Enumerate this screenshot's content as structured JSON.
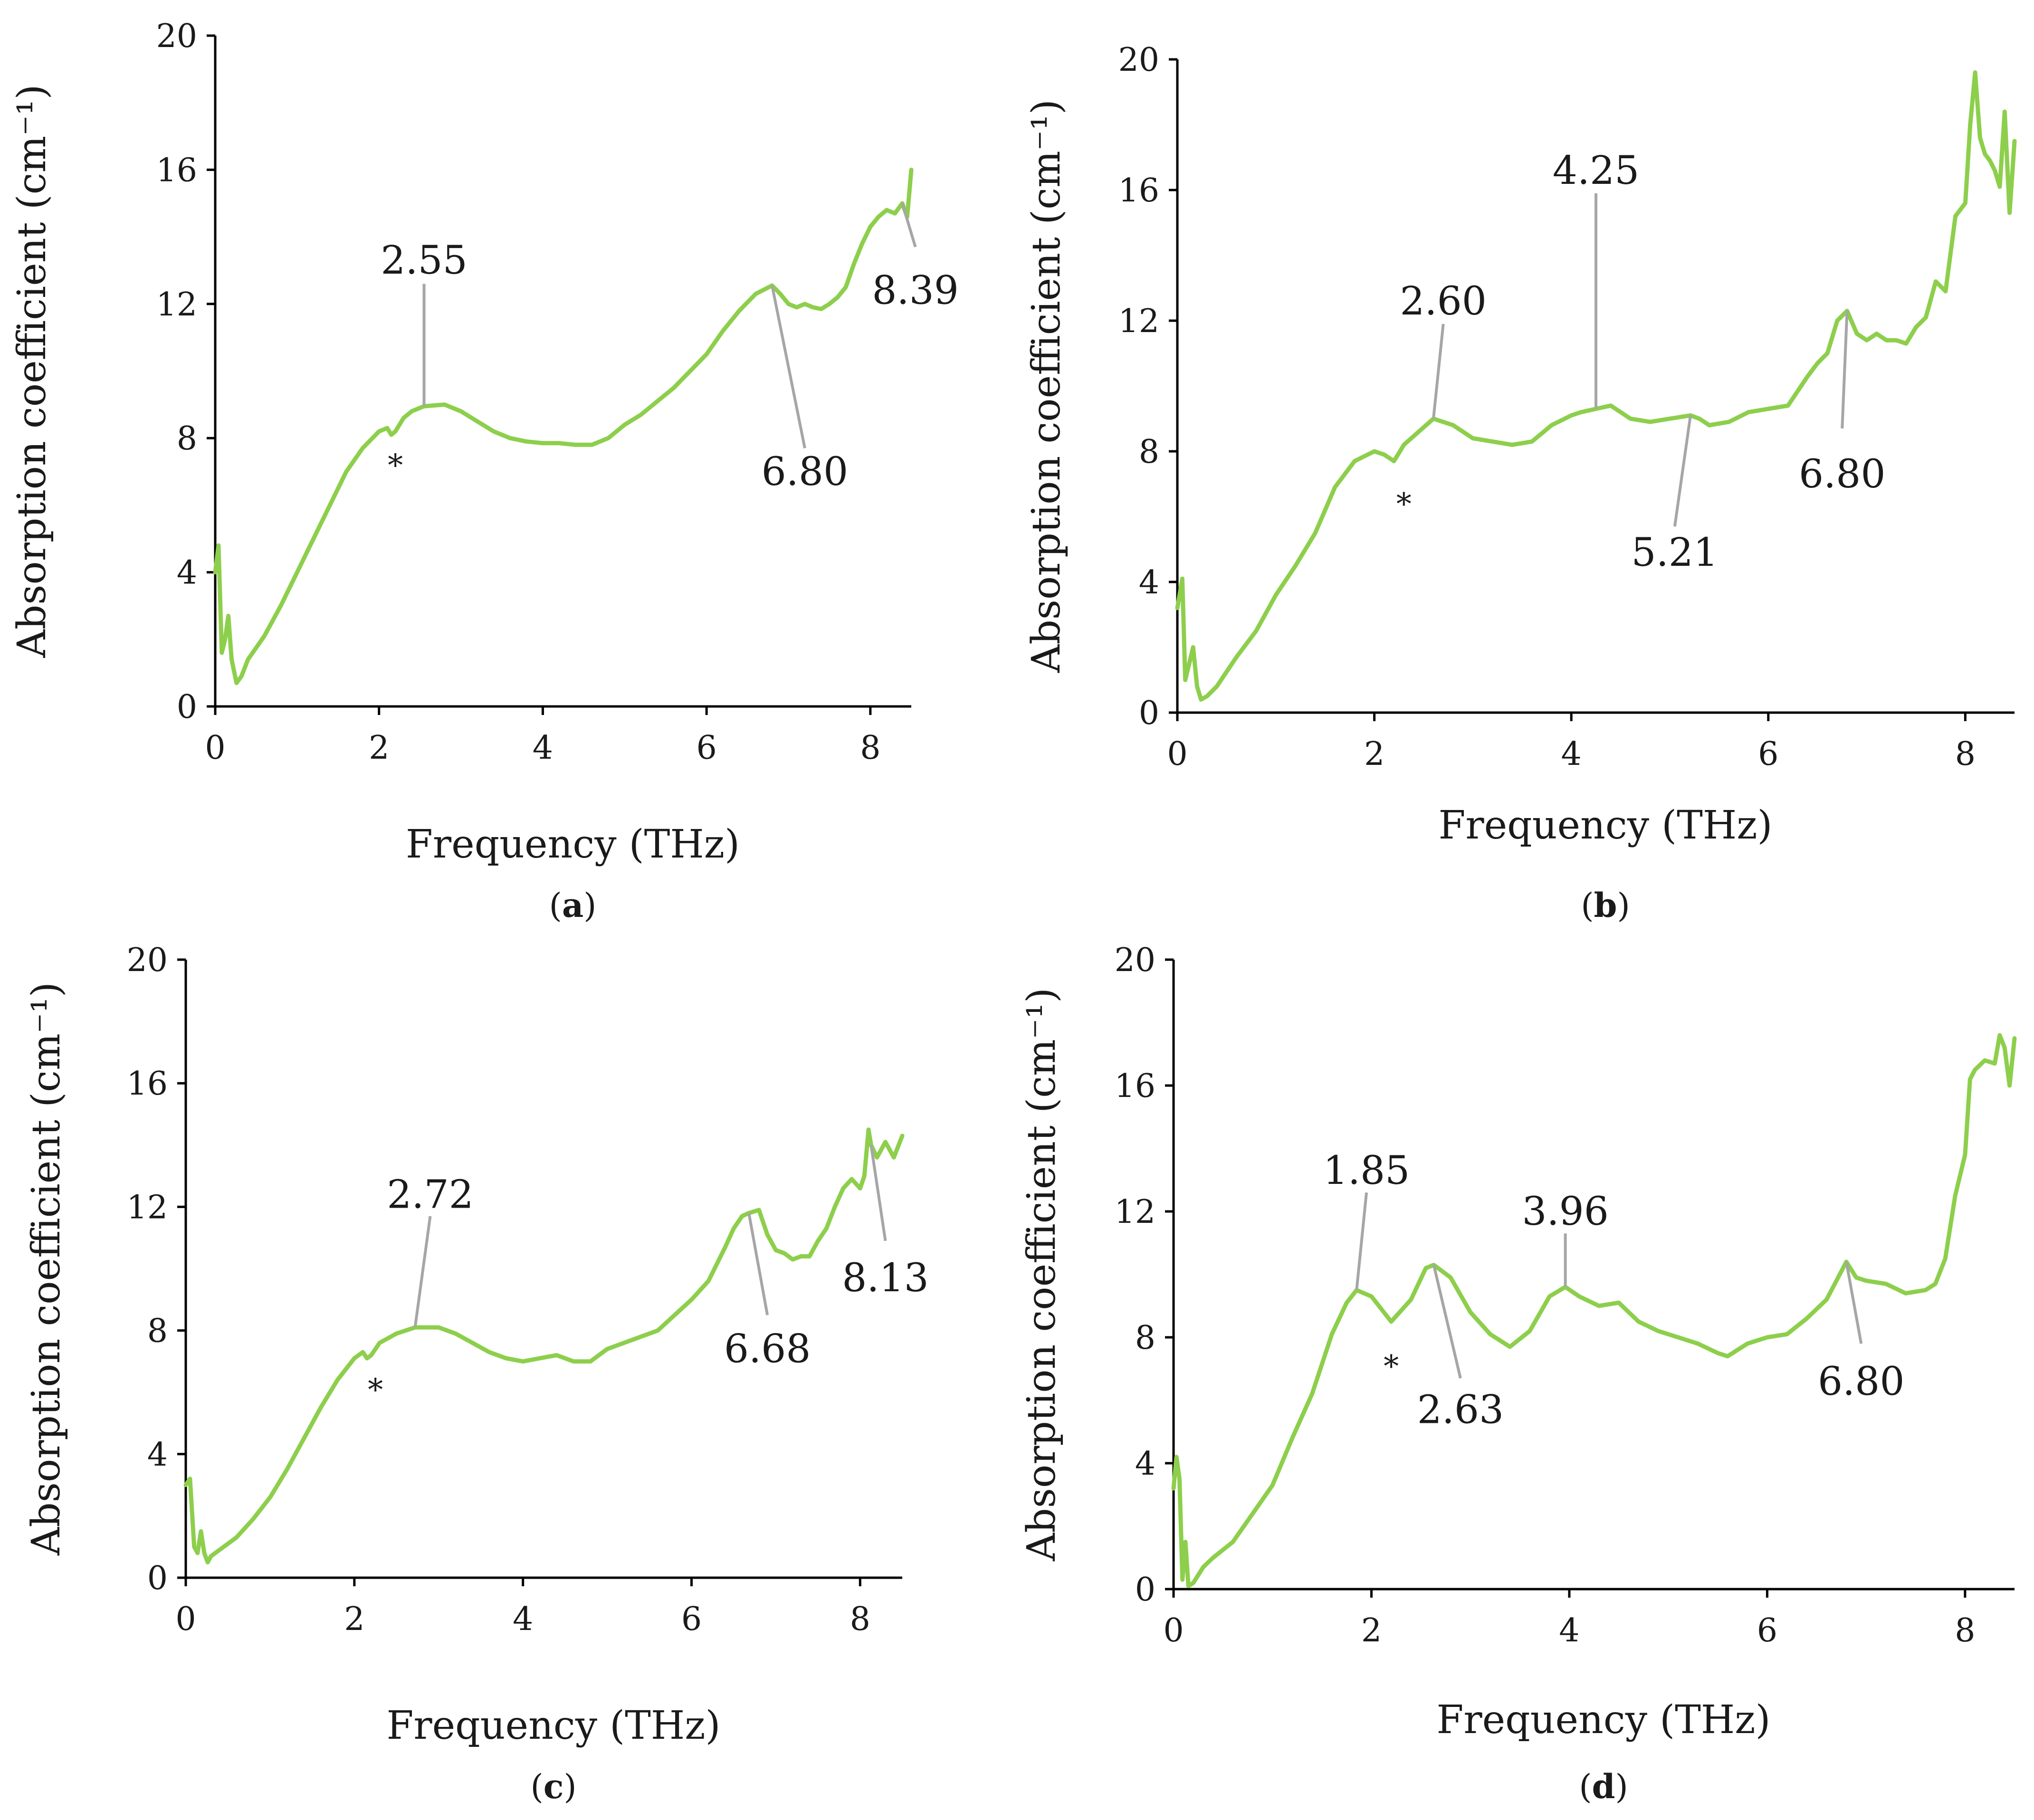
{
  "colors": {
    "series": "#8dcf4c",
    "leader": "#a6a6a6",
    "axis": "#000000",
    "text": "#1a1a1a"
  },
  "chart_data": [
    {
      "id": "a",
      "type": "line",
      "panel_label": "(a)",
      "panel_letter": "a",
      "xlabel": "Frequency (THz)",
      "ylabel": "Absorption coefficient (cm⁻¹)",
      "xlim": [
        0,
        8.5
      ],
      "ylim": [
        0,
        20
      ],
      "xticks": [
        0,
        2,
        4,
        6,
        8
      ],
      "yticks": [
        0,
        4,
        8,
        12,
        16,
        20
      ],
      "grid": false,
      "series": [
        {
          "name": "absorption",
          "x": [
            0.0,
            0.04,
            0.08,
            0.12,
            0.16,
            0.2,
            0.26,
            0.32,
            0.4,
            0.6,
            0.8,
            1.0,
            1.2,
            1.4,
            1.6,
            1.8,
            2.0,
            2.1,
            2.15,
            2.2,
            2.3,
            2.4,
            2.55,
            2.8,
            3.0,
            3.2,
            3.4,
            3.6,
            3.8,
            4.0,
            4.2,
            4.4,
            4.6,
            4.8,
            5.0,
            5.2,
            5.4,
            5.6,
            5.8,
            6.0,
            6.2,
            6.4,
            6.6,
            6.8,
            6.9,
            7.0,
            7.1,
            7.2,
            7.3,
            7.4,
            7.5,
            7.6,
            7.7,
            7.8,
            7.9,
            8.0,
            8.1,
            8.2,
            8.3,
            8.39,
            8.45,
            8.5
          ],
          "y": [
            4.0,
            4.8,
            1.6,
            2.0,
            2.7,
            1.4,
            0.7,
            0.9,
            1.4,
            2.1,
            3.0,
            4.0,
            5.0,
            6.0,
            7.0,
            7.7,
            8.2,
            8.3,
            8.1,
            8.2,
            8.6,
            8.8,
            8.95,
            9.0,
            8.8,
            8.5,
            8.2,
            8.0,
            7.9,
            7.85,
            7.85,
            7.8,
            7.8,
            8.0,
            8.4,
            8.7,
            9.1,
            9.5,
            10.0,
            10.5,
            11.2,
            11.8,
            12.3,
            12.55,
            12.3,
            12.0,
            11.9,
            12.0,
            11.9,
            11.85,
            12.0,
            12.2,
            12.5,
            13.2,
            13.8,
            14.3,
            14.6,
            14.8,
            14.7,
            15.0,
            14.6,
            16.0
          ]
        }
      ],
      "annotations": [
        {
          "text": "2.55",
          "x": 2.55,
          "y": 8.95,
          "lx": 2.55,
          "ly": 12.6,
          "tx": 2.55,
          "ty": 13.3
        },
        {
          "text": "6.80",
          "x": 6.8,
          "y": 12.55,
          "lx": 7.2,
          "ly": 7.7,
          "tx": 7.2,
          "ty": 7.0
        },
        {
          "text": "8.39",
          "x": 8.39,
          "y": 15.0,
          "lx": 8.55,
          "ly": 13.7,
          "tx": 8.55,
          "ty": 12.4
        }
      ],
      "marker": {
        "text": "*",
        "x": 2.2,
        "y": 7.3
      }
    },
    {
      "id": "b",
      "type": "line",
      "panel_label": "(b)",
      "panel_letter": "b",
      "xlabel": "Frequency (THz)",
      "ylabel": "Absorption coefficient (cm⁻¹)",
      "xlim": [
        0,
        8.5
      ],
      "ylim": [
        0,
        20
      ],
      "xticks": [
        0,
        2,
        4,
        6,
        8
      ],
      "yticks": [
        0,
        4,
        8,
        12,
        16,
        20
      ],
      "grid": false,
      "series": [
        {
          "name": "absorption",
          "x": [
            0.0,
            0.05,
            0.08,
            0.12,
            0.16,
            0.2,
            0.24,
            0.3,
            0.4,
            0.6,
            0.8,
            1.0,
            1.2,
            1.4,
            1.6,
            1.7,
            1.8,
            2.0,
            2.1,
            2.2,
            2.3,
            2.45,
            2.6,
            2.8,
            3.0,
            3.2,
            3.4,
            3.6,
            3.8,
            4.0,
            4.1,
            4.25,
            4.4,
            4.6,
            4.8,
            5.0,
            5.21,
            5.3,
            5.4,
            5.6,
            5.8,
            6.0,
            6.2,
            6.4,
            6.5,
            6.6,
            6.7,
            6.8,
            6.9,
            7.0,
            7.1,
            7.2,
            7.3,
            7.4,
            7.5,
            7.6,
            7.7,
            7.8,
            7.9,
            8.0,
            8.05,
            8.1,
            8.15,
            8.2,
            8.25,
            8.3,
            8.35,
            8.4,
            8.45,
            8.5
          ],
          "y": [
            3.2,
            4.1,
            1.0,
            1.5,
            2.0,
            0.8,
            0.4,
            0.5,
            0.8,
            1.7,
            2.5,
            3.6,
            4.5,
            5.5,
            6.9,
            7.3,
            7.7,
            8.0,
            7.9,
            7.7,
            8.2,
            8.6,
            9.0,
            8.8,
            8.4,
            8.3,
            8.2,
            8.3,
            8.8,
            9.1,
            9.2,
            9.3,
            9.4,
            9.0,
            8.9,
            9.0,
            9.1,
            9.0,
            8.8,
            8.9,
            9.2,
            9.3,
            9.4,
            10.3,
            10.7,
            11.0,
            12.0,
            12.3,
            11.6,
            11.4,
            11.6,
            11.4,
            11.4,
            11.3,
            11.8,
            12.1,
            13.2,
            12.9,
            15.2,
            15.6,
            18.0,
            19.6,
            17.6,
            17.1,
            16.9,
            16.6,
            16.1,
            18.4,
            15.3,
            17.5
          ]
        }
      ],
      "annotations": [
        {
          "text": "2.60",
          "x": 2.6,
          "y": 9.0,
          "lx": 2.7,
          "ly": 11.9,
          "tx": 2.7,
          "ty": 12.6
        },
        {
          "text": "4.25",
          "x": 4.25,
          "y": 9.3,
          "lx": 4.25,
          "ly": 15.9,
          "tx": 4.25,
          "ty": 16.6
        },
        {
          "text": "5.21",
          "x": 5.21,
          "y": 9.1,
          "lx": 5.05,
          "ly": 5.7,
          "tx": 5.05,
          "ty": 4.9
        },
        {
          "text": "6.80",
          "x": 6.8,
          "y": 12.3,
          "lx": 6.75,
          "ly": 8.7,
          "tx": 6.75,
          "ty": 7.3
        }
      ],
      "marker": {
        "text": "*",
        "x": 2.3,
        "y": 6.5
      }
    },
    {
      "id": "c",
      "type": "line",
      "panel_label": "(c)",
      "panel_letter": "c",
      "xlabel": "Frequency (THz)",
      "ylabel": "Absorption coefficient (cm⁻¹)",
      "xlim": [
        0,
        8.5
      ],
      "ylim": [
        0,
        20
      ],
      "xticks": [
        0,
        2,
        4,
        6,
        8
      ],
      "yticks": [
        0,
        4,
        8,
        12,
        16,
        20
      ],
      "grid": false,
      "series": [
        {
          "name": "absorption",
          "x": [
            0.0,
            0.05,
            0.1,
            0.14,
            0.18,
            0.22,
            0.26,
            0.3,
            0.4,
            0.6,
            0.8,
            1.0,
            1.2,
            1.4,
            1.6,
            1.8,
            2.0,
            2.1,
            2.15,
            2.2,
            2.3,
            2.5,
            2.72,
            2.9,
            3.0,
            3.2,
            3.4,
            3.6,
            3.8,
            4.0,
            4.2,
            4.4,
            4.6,
            4.8,
            5.0,
            5.2,
            5.4,
            5.6,
            5.8,
            6.0,
            6.2,
            6.4,
            6.5,
            6.6,
            6.68,
            6.8,
            6.9,
            7.0,
            7.1,
            7.2,
            7.3,
            7.4,
            7.5,
            7.6,
            7.7,
            7.8,
            7.9,
            8.0,
            8.05,
            8.1,
            8.13,
            8.2,
            8.3,
            8.4,
            8.5
          ],
          "y": [
            3.0,
            3.2,
            1.0,
            0.8,
            1.5,
            0.8,
            0.5,
            0.7,
            0.9,
            1.3,
            1.9,
            2.6,
            3.5,
            4.5,
            5.5,
            6.4,
            7.1,
            7.3,
            7.1,
            7.2,
            7.6,
            7.9,
            8.1,
            8.1,
            8.1,
            7.9,
            7.6,
            7.3,
            7.1,
            7.0,
            7.1,
            7.2,
            7.0,
            7.0,
            7.4,
            7.6,
            7.8,
            8.0,
            8.5,
            9.0,
            9.6,
            10.7,
            11.3,
            11.7,
            11.8,
            11.9,
            11.1,
            10.6,
            10.5,
            10.3,
            10.4,
            10.4,
            10.9,
            11.3,
            12.0,
            12.6,
            12.9,
            12.6,
            13.0,
            14.5,
            14.0,
            13.6,
            14.1,
            13.6,
            14.3
          ]
        }
      ],
      "annotations": [
        {
          "text": "2.72",
          "x": 2.72,
          "y": 8.1,
          "lx": 2.9,
          "ly": 11.7,
          "tx": 2.9,
          "ty": 12.4
        },
        {
          "text": "6.68",
          "x": 6.68,
          "y": 11.8,
          "lx": 6.9,
          "ly": 8.5,
          "tx": 6.9,
          "ty": 7.4
        },
        {
          "text": "8.13",
          "x": 8.13,
          "y": 14.0,
          "lx": 8.3,
          "ly": 10.9,
          "tx": 8.3,
          "ty": 9.7
        }
      ],
      "marker": {
        "text": "*",
        "x": 2.25,
        "y": 6.2
      }
    },
    {
      "id": "d",
      "type": "line",
      "panel_label": "(d)",
      "panel_letter": "d",
      "xlabel": "Frequency (THz)",
      "ylabel": "Absorption coefficient (cm⁻¹)",
      "xlim": [
        0,
        8.5
      ],
      "ylim": [
        0,
        20
      ],
      "xticks": [
        0,
        2,
        4,
        6,
        8
      ],
      "yticks": [
        0,
        4,
        8,
        12,
        16,
        20
      ],
      "grid": false,
      "series": [
        {
          "name": "absorption",
          "x": [
            0.0,
            0.03,
            0.06,
            0.09,
            0.12,
            0.15,
            0.2,
            0.3,
            0.4,
            0.6,
            0.8,
            1.0,
            1.2,
            1.4,
            1.6,
            1.75,
            1.85,
            2.0,
            2.1,
            2.2,
            2.4,
            2.55,
            2.63,
            2.8,
            3.0,
            3.2,
            3.4,
            3.6,
            3.8,
            3.96,
            4.1,
            4.3,
            4.5,
            4.7,
            4.9,
            5.1,
            5.3,
            5.5,
            5.6,
            5.8,
            6.0,
            6.2,
            6.4,
            6.6,
            6.7,
            6.8,
            6.9,
            7.0,
            7.2,
            7.4,
            7.6,
            7.7,
            7.8,
            7.9,
            8.0,
            8.05,
            8.1,
            8.2,
            8.3,
            8.35,
            8.4,
            8.45,
            8.5
          ],
          "y": [
            3.2,
            4.2,
            3.5,
            0.3,
            1.5,
            0.1,
            0.2,
            0.7,
            1.0,
            1.5,
            2.4,
            3.3,
            4.8,
            6.2,
            8.1,
            9.1,
            9.5,
            9.3,
            8.9,
            8.5,
            9.2,
            10.2,
            10.3,
            9.9,
            8.8,
            8.1,
            7.7,
            8.2,
            9.3,
            9.6,
            9.3,
            9.0,
            9.1,
            8.5,
            8.2,
            8.0,
            7.8,
            7.5,
            7.4,
            7.8,
            8.0,
            8.1,
            8.6,
            9.2,
            9.8,
            10.4,
            9.9,
            9.8,
            9.7,
            9.4,
            9.5,
            9.7,
            10.5,
            12.5,
            13.8,
            16.2,
            16.5,
            16.8,
            16.7,
            17.6,
            17.2,
            16.0,
            17.5
          ]
        }
      ],
      "annotations": [
        {
          "text": "1.85",
          "x": 1.85,
          "y": 9.5,
          "lx": 1.95,
          "ly": 12.6,
          "tx": 1.95,
          "ty": 13.3
        },
        {
          "text": "2.63",
          "x": 2.63,
          "y": 10.3,
          "lx": 2.9,
          "ly": 6.7,
          "tx": 2.9,
          "ty": 5.7
        },
        {
          "text": "3.96",
          "x": 3.96,
          "y": 9.6,
          "lx": 3.96,
          "ly": 11.3,
          "tx": 3.96,
          "ty": 12.0
        },
        {
          "text": "6.80",
          "x": 6.8,
          "y": 10.4,
          "lx": 6.95,
          "ly": 7.8,
          "tx": 6.95,
          "ty": 6.6
        }
      ],
      "marker": {
        "text": "*",
        "x": 2.2,
        "y": 7.2
      }
    }
  ]
}
